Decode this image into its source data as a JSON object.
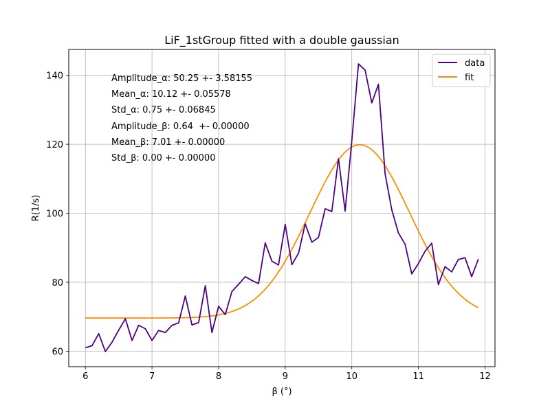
{
  "chart_data": {
    "type": "line",
    "title": "LiF_1stGroup fitted with a double gaussian",
    "xlabel": "β (°)",
    "ylabel": "R(1/s)",
    "xlim": [
      5.75,
      12.15
    ],
    "ylim": [
      55.5,
      147.5
    ],
    "xticks": [
      6,
      7,
      8,
      9,
      10,
      11,
      12
    ],
    "yticks": [
      60,
      80,
      100,
      120,
      140
    ],
    "grid": true,
    "legend_position": "top-right",
    "annotations": [
      "Amplitude_α: 50.25 +- 3.58155",
      "Mean_α: 10.12 +- 0.05578",
      "Std_α: 0.75 +- 0.06845",
      "Amplitude_β: 0.64  +- 0.00000",
      "Mean_β: 7.01 +- 0.00000",
      "Std_β: 0.00 +- 0.00000"
    ],
    "series": [
      {
        "name": "data",
        "color": "#4b0082",
        "x": [
          6.0,
          6.1,
          6.2,
          6.3,
          6.4,
          6.5,
          6.6,
          6.7,
          6.8,
          6.9,
          7.0,
          7.1,
          7.2,
          7.3,
          7.4,
          7.5,
          7.6,
          7.7,
          7.8,
          7.9,
          8.0,
          8.1,
          8.2,
          8.3,
          8.4,
          8.5,
          8.6,
          8.7,
          8.8,
          8.9,
          9.0,
          9.1,
          9.2,
          9.3,
          9.4,
          9.5,
          9.6,
          9.7,
          9.8,
          9.9,
          10.0,
          10.1,
          10.2,
          10.3,
          10.4,
          10.5,
          10.6,
          10.7,
          10.8,
          10.9,
          11.0,
          11.1,
          11.2,
          11.3,
          11.4,
          11.5,
          11.6,
          11.7,
          11.8,
          11.9
        ],
        "y": [
          61.0,
          61.6,
          65.1,
          59.9,
          62.6,
          66.1,
          69.4,
          63.1,
          67.5,
          66.5,
          63.1,
          66.0,
          65.4,
          67.5,
          68.2,
          76.0,
          67.6,
          68.3,
          79.0,
          65.4,
          73.0,
          70.6,
          77.3,
          79.4,
          81.6,
          80.5,
          79.6,
          91.4,
          86.1,
          85.0,
          96.8,
          85.1,
          88.4,
          96.9,
          91.6,
          93.0,
          101.3,
          100.5,
          115.8,
          100.6,
          121.0,
          143.3,
          141.5,
          132.0,
          137.4,
          111.4,
          101.0,
          94.3,
          91.0,
          82.4,
          85.4,
          89.0,
          91.3,
          79.3,
          84.5,
          83.0,
          86.6,
          87.1,
          81.6,
          86.7
        ]
      },
      {
        "name": "fit",
        "color": "#ff8c00",
        "model": {
          "baseline": 69.6,
          "amplitude": 50.25,
          "mean": 10.12,
          "std": 0.75
        },
        "x_range": [
          6.0,
          11.9
        ]
      }
    ]
  }
}
